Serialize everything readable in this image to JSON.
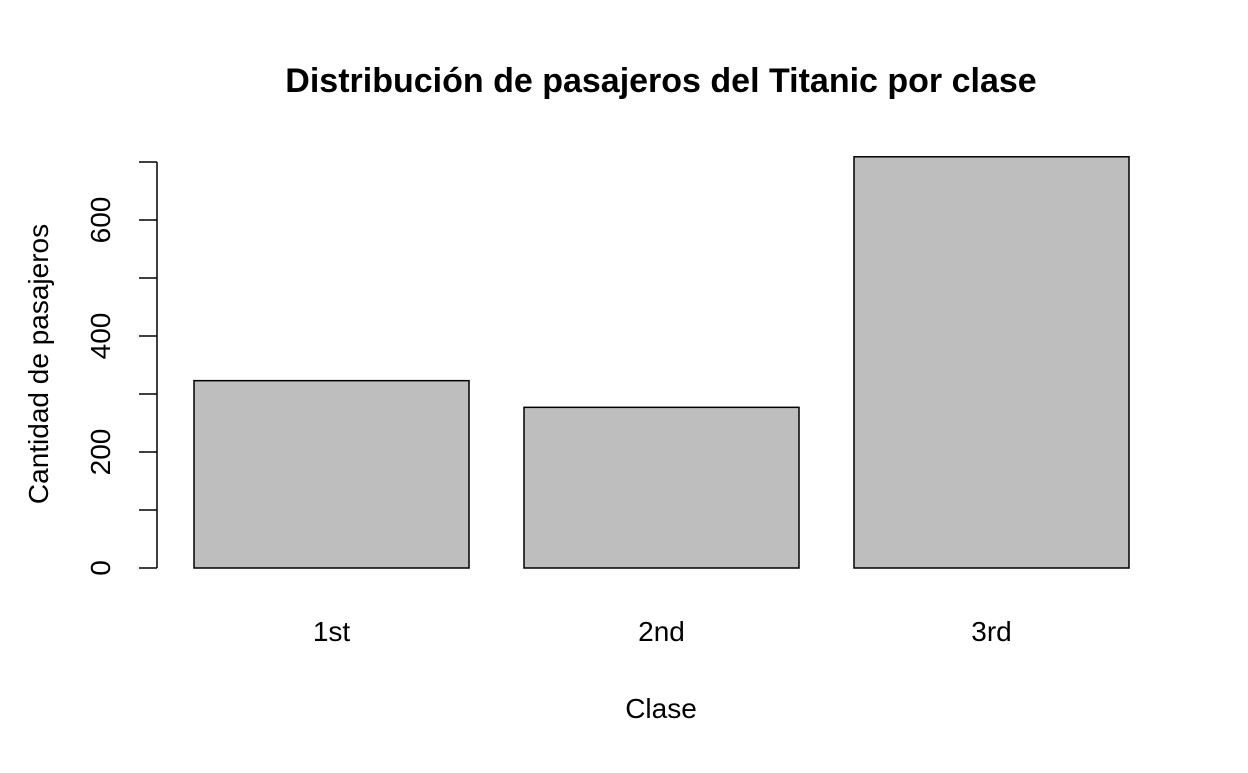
{
  "chart_data": {
    "type": "bar",
    "title": "Distribución de pasajeros del Titanic por clase",
    "xlabel": "Clase",
    "ylabel": "Cantidad de pasajeros",
    "categories": [
      "1st",
      "2nd",
      "3rd"
    ],
    "values": [
      323,
      277,
      709
    ],
    "ylim": [
      0,
      700
    ],
    "yticks": [
      0,
      200,
      400,
      600
    ],
    "bar_color": "#bebebe",
    "bar_border_color": "#000000",
    "grid": false,
    "legend": "none"
  }
}
